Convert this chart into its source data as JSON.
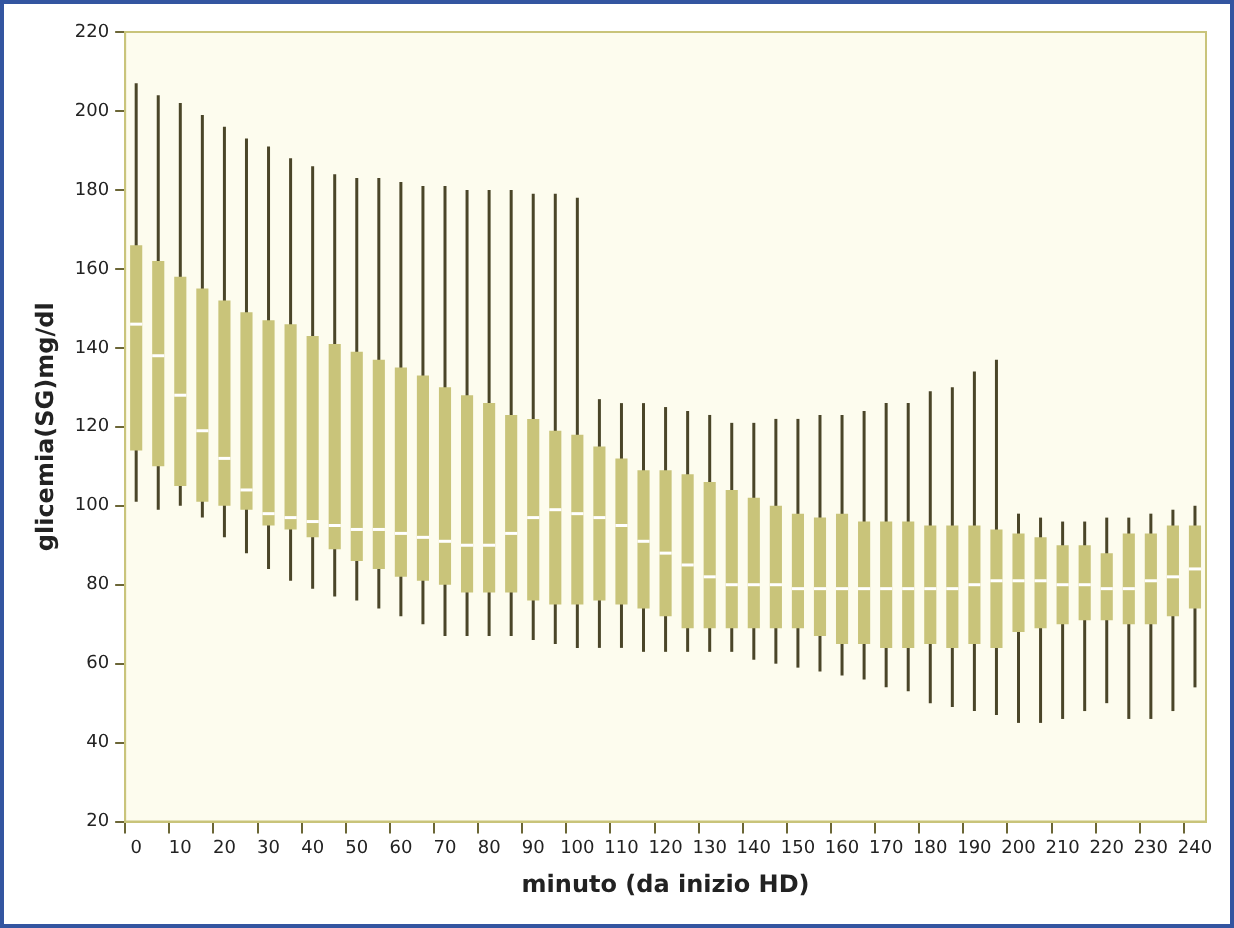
{
  "chart_data": {
    "type": "box",
    "xlabel": "minuto (da inizio HD)",
    "ylabel": "glicemia(SG)mg/dl",
    "color": "#c9c47a",
    "categories": [
      "0",
      null,
      "10",
      null,
      "20",
      null,
      "30",
      null,
      "40",
      null,
      "50",
      null,
      "60",
      null,
      "70",
      null,
      "80",
      null,
      "90",
      null,
      "100",
      null,
      "110",
      null,
      "120",
      null,
      "130",
      null,
      "140",
      null,
      "150",
      null,
      "160",
      null,
      "170",
      null,
      "180",
      null,
      "190",
      null,
      "200",
      null,
      "210",
      null,
      "220",
      null,
      "230",
      null,
      "240"
    ],
    "ylim": [
      20,
      220
    ],
    "yticks": [
      20,
      40,
      60,
      80,
      100,
      120,
      140,
      160,
      180,
      200,
      220
    ],
    "boxes": [
      {
        "low": 101,
        "q1": 114,
        "median": 146,
        "q3": 166,
        "high": 207
      },
      {
        "low": 99,
        "q1": 110,
        "median": 138,
        "q3": 162,
        "high": 204
      },
      {
        "low": 100,
        "q1": 105,
        "median": 128,
        "q3": 158,
        "high": 202
      },
      {
        "low": 97,
        "q1": 101,
        "median": 119,
        "q3": 155,
        "high": 199
      },
      {
        "low": 92,
        "q1": 100,
        "median": 112,
        "q3": 152,
        "high": 196
      },
      {
        "low": 88,
        "q1": 99,
        "median": 104,
        "q3": 149,
        "high": 193
      },
      {
        "low": 84,
        "q1": 95,
        "median": 98,
        "q3": 147,
        "high": 191
      },
      {
        "low": 81,
        "q1": 94,
        "median": 97,
        "q3": 146,
        "high": 188
      },
      {
        "low": 79,
        "q1": 92,
        "median": 96,
        "q3": 143,
        "high": 186
      },
      {
        "low": 77,
        "q1": 89,
        "median": 95,
        "q3": 141,
        "high": 184
      },
      {
        "low": 76,
        "q1": 86,
        "median": 94,
        "q3": 139,
        "high": 183
      },
      {
        "low": 74,
        "q1": 84,
        "median": 94,
        "q3": 137,
        "high": 183
      },
      {
        "low": 72,
        "q1": 82,
        "median": 93,
        "q3": 135,
        "high": 182
      },
      {
        "low": 70,
        "q1": 81,
        "median": 92,
        "q3": 133,
        "high": 181
      },
      {
        "low": 67,
        "q1": 80,
        "median": 91,
        "q3": 130,
        "high": 181
      },
      {
        "low": 67,
        "q1": 78,
        "median": 90,
        "q3": 128,
        "high": 180
      },
      {
        "low": 67,
        "q1": 78,
        "median": 90,
        "q3": 126,
        "high": 180
      },
      {
        "low": 67,
        "q1": 78,
        "median": 93,
        "q3": 123,
        "high": 180
      },
      {
        "low": 66,
        "q1": 76,
        "median": 97,
        "q3": 122,
        "high": 179
      },
      {
        "low": 65,
        "q1": 75,
        "median": 99,
        "q3": 119,
        "high": 179
      },
      {
        "low": 64,
        "q1": 75,
        "median": 98,
        "q3": 118,
        "high": 178
      },
      {
        "low": 64,
        "q1": 76,
        "median": 97,
        "q3": 115,
        "high": 127
      },
      {
        "low": 64,
        "q1": 75,
        "median": 95,
        "q3": 112,
        "high": 126
      },
      {
        "low": 63,
        "q1": 74,
        "median": 91,
        "q3": 109,
        "high": 126
      },
      {
        "low": 63,
        "q1": 72,
        "median": 88,
        "q3": 109,
        "high": 125
      },
      {
        "low": 63,
        "q1": 69,
        "median": 85,
        "q3": 108,
        "high": 124
      },
      {
        "low": 63,
        "q1": 69,
        "median": 82,
        "q3": 106,
        "high": 123
      },
      {
        "low": 63,
        "q1": 69,
        "median": 80,
        "q3": 104,
        "high": 121
      },
      {
        "low": 61,
        "q1": 69,
        "median": 80,
        "q3": 102,
        "high": 121
      },
      {
        "low": 60,
        "q1": 69,
        "median": 80,
        "q3": 100,
        "high": 122
      },
      {
        "low": 59,
        "q1": 69,
        "median": 79,
        "q3": 98,
        "high": 122
      },
      {
        "low": 58,
        "q1": 67,
        "median": 79,
        "q3": 97,
        "high": 123
      },
      {
        "low": 57,
        "q1": 65,
        "median": 79,
        "q3": 98,
        "high": 123
      },
      {
        "low": 56,
        "q1": 65,
        "median": 79,
        "q3": 96,
        "high": 124
      },
      {
        "low": 54,
        "q1": 64,
        "median": 79,
        "q3": 96,
        "high": 126
      },
      {
        "low": 53,
        "q1": 64,
        "median": 79,
        "q3": 96,
        "high": 126
      },
      {
        "low": 50,
        "q1": 65,
        "median": 79,
        "q3": 95,
        "high": 129
      },
      {
        "low": 49,
        "q1": 64,
        "median": 79,
        "q3": 95,
        "high": 130
      },
      {
        "low": 48,
        "q1": 65,
        "median": 80,
        "q3": 95,
        "high": 134
      },
      {
        "low": 47,
        "q1": 64,
        "median": 81,
        "q3": 94,
        "high": 137
      },
      {
        "low": 45,
        "q1": 68,
        "median": 81,
        "q3": 93,
        "high": 98
      },
      {
        "low": 45,
        "q1": 69,
        "median": 81,
        "q3": 92,
        "high": 97
      },
      {
        "low": 46,
        "q1": 70,
        "median": 80,
        "q3": 90,
        "high": 96
      },
      {
        "low": 48,
        "q1": 71,
        "median": 80,
        "q3": 90,
        "high": 96
      },
      {
        "low": 50,
        "q1": 71,
        "median": 79,
        "q3": 88,
        "high": 97
      },
      {
        "low": 46,
        "q1": 70,
        "median": 79,
        "q3": 93,
        "high": 97
      },
      {
        "low": 46,
        "q1": 70,
        "median": 81,
        "q3": 93,
        "high": 98
      },
      {
        "low": 48,
        "q1": 72,
        "median": 82,
        "q3": 95,
        "high": 99
      },
      {
        "low": 54,
        "q1": 74,
        "median": 84,
        "q3": 95,
        "high": 100
      }
    ]
  }
}
